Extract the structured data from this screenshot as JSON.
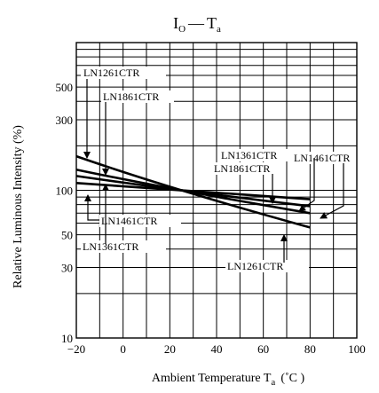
{
  "chart_data": {
    "type": "line",
    "title_main": "I",
    "title_main_sub": "O",
    "title_dash": "—",
    "title_second": "T",
    "title_second_sub": "a",
    "xlabel_main": "Ambient Temperature  T",
    "xlabel_sub": "a",
    "xlabel_unit": "(˚C )",
    "ylabel": "Relative Luminous Intensity (%)",
    "x_ticks": [
      "−20",
      "0",
      "20",
      "40",
      "60",
      "80",
      "100"
    ],
    "x_tick_values": [
      -20,
      0,
      20,
      40,
      60,
      80,
      100
    ],
    "y_ticks": [
      "500",
      "300",
      "100",
      "50",
      "30",
      "10"
    ],
    "y_tick_values": [
      500,
      300,
      100,
      50,
      30,
      10
    ],
    "xlim": [
      -20,
      100
    ],
    "ylim": [
      10,
      1000
    ],
    "y_scale": "log",
    "grid": true,
    "series": [
      {
        "name": "LN1261CTR",
        "x": [
          -20,
          25,
          80
        ],
        "y": [
          170,
          100,
          56
        ]
      },
      {
        "name": "LN1861CTR",
        "x": [
          -20,
          25,
          80
        ],
        "y": [
          138,
          100,
          70
        ]
      },
      {
        "name": "LN1361CTR",
        "x": [
          -20,
          25,
          80
        ],
        "y": [
          125,
          100,
          78
        ]
      },
      {
        "name": "LN1461CTR",
        "x": [
          -20,
          25,
          80
        ],
        "y": [
          112,
          100,
          87
        ]
      }
    ],
    "annotations": [
      "LN1261CTR",
      "LN1861CTR",
      "LN1461CTR",
      "LN1361CTR",
      "LN1861CTR",
      "LN1461CTR",
      "LN1361CTR",
      "LN1261CTR"
    ]
  }
}
